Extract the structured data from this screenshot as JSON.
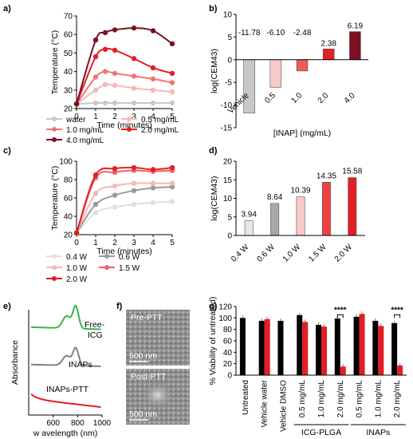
{
  "panel_labels": [
    "a)",
    "b)",
    "c)",
    "d)",
    "e)",
    "f)",
    "g)"
  ],
  "chart_data": [
    {
      "panel": "a)",
      "type": "line",
      "xlabel": "Time (minutes)",
      "ylabel": "Temperature (°C)",
      "xlim": [
        0,
        5
      ],
      "ylim": [
        20,
        70
      ],
      "x_ticks": [
        "0",
        "1",
        "2",
        "3",
        "4",
        "5"
      ],
      "y_ticks": [
        "20",
        "30",
        "40",
        "50",
        "60",
        "70"
      ],
      "x": [
        0,
        1,
        1.5,
        2,
        3,
        4,
        5
      ],
      "series": [
        {
          "name": "water",
          "color": "#c8c8c8",
          "values": [
            22.5,
            23,
            23,
            23,
            23,
            23,
            23
          ]
        },
        {
          "name": "0.5 mg/mL",
          "color": "#f6b8b8",
          "values": [
            22.5,
            30,
            33,
            32.5,
            31,
            30,
            29
          ]
        },
        {
          "name": "1.0 mg/mL",
          "color": "#f07575",
          "values": [
            22.5,
            37,
            40,
            39,
            37.5,
            36,
            34
          ]
        },
        {
          "name": "2.0 mg/mL",
          "color": "#e31e24",
          "values": [
            22.5,
            48,
            52,
            51.5,
            47,
            42,
            39
          ]
        },
        {
          "name": "4.0 mg/mL",
          "color": "#7b1022",
          "values": [
            22.5,
            57,
            61,
            62.5,
            63.5,
            62,
            55
          ]
        }
      ]
    },
    {
      "panel": "b)",
      "type": "bar",
      "xlabel": "[INAP] (mg/mL)",
      "ylabel": "log(CEM43)",
      "ylim": [
        -15,
        10
      ],
      "y_ticks": [
        "-15",
        "-10",
        "-5",
        "0",
        "5",
        "10"
      ],
      "categories": [
        "Vehicle",
        "0.5",
        "1.0",
        "2.0",
        "4.0"
      ],
      "values": [
        -11.78,
        -6.1,
        -2.48,
        2.38,
        6.19
      ],
      "value_labels": [
        "-11.78",
        "-6.10",
        "-2.48",
        "2.38",
        "6.19"
      ],
      "colors": [
        "#c8c8c8",
        "#f9c9c9",
        "#ee5a5a",
        "#e31e24",
        "#7b1022"
      ]
    },
    {
      "panel": "c)",
      "type": "line",
      "xlabel": "Time (minutes)",
      "ylabel": "Temperature (°C)",
      "xlim": [
        0,
        5
      ],
      "ylim": [
        20,
        100
      ],
      "x_ticks": [
        "0",
        "1",
        "2",
        "3",
        "4",
        "5"
      ],
      "y_ticks": [
        "20",
        "40",
        "60",
        "80",
        "100"
      ],
      "x": [
        0,
        1,
        2,
        3,
        4,
        5
      ],
      "series": [
        {
          "name": "0.4 W",
          "color": "#e0e0e0",
          "values": [
            22,
            44,
            50,
            53,
            55,
            56
          ]
        },
        {
          "name": "0.6 W",
          "color": "#9b9b9b",
          "values": [
            22,
            53,
            63,
            68,
            71,
            72
          ]
        },
        {
          "name": "1.0 W",
          "color": "#f6b8b8",
          "values": [
            22,
            65,
            73,
            76,
            76,
            76
          ]
        },
        {
          "name": "1.5 W",
          "color": "#f06060",
          "values": [
            22,
            82,
            88,
            90,
            89,
            90
          ]
        },
        {
          "name": "2.0 W",
          "color": "#e31e24",
          "values": [
            22,
            85,
            92,
            93,
            91,
            93
          ]
        }
      ]
    },
    {
      "panel": "d)",
      "type": "bar",
      "ylabel": "log(CEM43)",
      "ylim": [
        0,
        20
      ],
      "y_ticks": [
        "0",
        "5",
        "10",
        "15",
        "20"
      ],
      "categories": [
        "0.4 W",
        "0.6 W",
        "1.0 W",
        "1.5 W",
        "2.0 W"
      ],
      "values": [
        3.94,
        8.64,
        10.39,
        14.35,
        15.58
      ],
      "value_labels": [
        "3.94",
        "8.64",
        "10.39",
        "14.35",
        "15.58"
      ],
      "colors": [
        "#e6e6e6",
        "#a8a8a8",
        "#f9c9c9",
        "#ee4040",
        "#e31e24"
      ]
    },
    {
      "panel": "e)",
      "type": "line",
      "xlabel": "w avelength (nm)",
      "ylabel": "Absorbance",
      "xlim": [
        400,
        1000
      ],
      "x_ticks": [
        "600",
        "800",
        "1000"
      ],
      "series": [
        {
          "name": "Free-ICG",
          "color": "#39b54a"
        },
        {
          "name": "INAPs",
          "color": "#808080"
        },
        {
          "name": "INAPs-PTT",
          "color": "#e31e24"
        }
      ]
    },
    {
      "panel": "g)",
      "type": "bar",
      "ylabel": "% Viability of untreated)",
      "ylim": [
        0,
        120
      ],
      "y_ticks": [
        "0",
        "20",
        "40",
        "60",
        "80",
        "100",
        "120"
      ],
      "categories": [
        "Untreated",
        "Vehicle water",
        "Vehicle DMSO",
        "0.5 mg/mL",
        "1.0 mg/mL",
        "2.0 mg/mL",
        "0.5 mg/mL",
        "1.0 mg/mL",
        "2.0 mg/mL"
      ],
      "groups": [
        "ICG-PLGA",
        "INAPs"
      ],
      "series": [
        {
          "color": "#000000",
          "values": [
            100,
            95,
            95,
            105,
            88,
            99,
            102,
            95,
            91
          ]
        },
        {
          "color": "#e31e24",
          "values": [
            null,
            98,
            null,
            93,
            85,
            15,
            107,
            86,
            17
          ]
        }
      ],
      "significance": [
        "****",
        "****"
      ]
    }
  ],
  "sem": {
    "pre_label": "Pre-PTT",
    "post_label": "Post-PTT",
    "scale_top": "500 nm",
    "scale_bottom": "500 nm"
  }
}
